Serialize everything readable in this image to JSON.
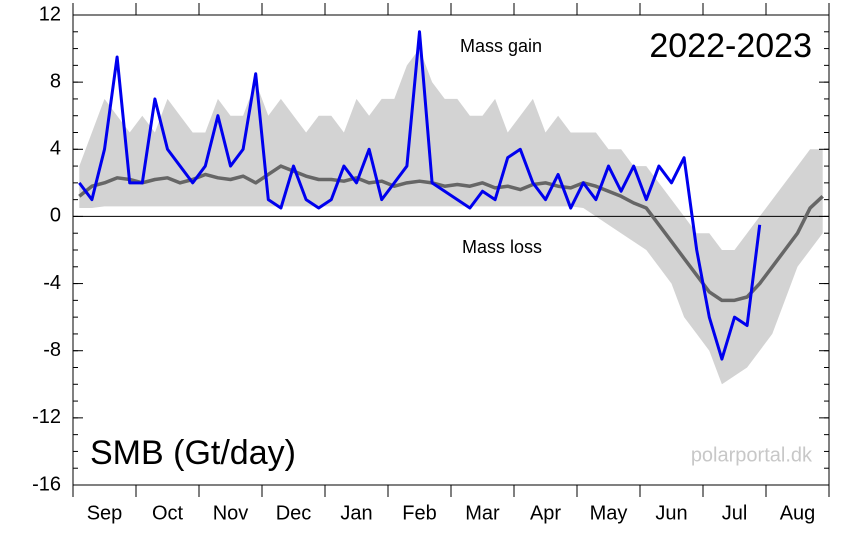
{
  "chart_data": {
    "type": "line",
    "title": "2022-2023",
    "y_label": "SMB (Gt/day)",
    "annotations": [
      "Mass gain",
      "Mass loss"
    ],
    "source": "polarportal.dk",
    "categories": [
      null,
      null,
      "Sep",
      null,
      null,
      null,
      null,
      "Oct",
      null,
      null,
      null,
      null,
      "Nov",
      null,
      null,
      null,
      null,
      "Dec",
      null,
      null,
      null,
      null,
      "Jan",
      null,
      null,
      null,
      null,
      "Feb",
      null,
      null,
      null,
      null,
      "Mar",
      null,
      null,
      null,
      null,
      "Apr",
      null,
      null,
      null,
      null,
      "May",
      null,
      null,
      null,
      null,
      "Jun",
      null,
      null,
      null,
      null,
      "Jul",
      null,
      null,
      null,
      null,
      "Aug",
      null,
      null
    ],
    "ylim": [
      -16,
      12
    ],
    "yticks": [
      -16,
      -12,
      -8,
      -4,
      0,
      4,
      8,
      12
    ],
    "series": [
      {
        "color": "#d3d3d3",
        "values": [
          3,
          5,
          7,
          6,
          5,
          6,
          5,
          7,
          6,
          5,
          5,
          7,
          6,
          6,
          8,
          6,
          7,
          6,
          5,
          6,
          6,
          5,
          7,
          6,
          7,
          7,
          9,
          10,
          8,
          7,
          7,
          6,
          6,
          7,
          5,
          6,
          7,
          5,
          6,
          5,
          5,
          5,
          4,
          4,
          3,
          3,
          2,
          1,
          0,
          -1,
          -1,
          -2,
          -2,
          -1,
          0,
          1,
          2,
          3,
          4,
          4
        ]
      },
      {
        "color": "#d3d3d3",
        "values": [
          0.5,
          0.5,
          0.6,
          0.6,
          0.6,
          0.6,
          0.6,
          0.6,
          0.6,
          0.6,
          0.6,
          0.6,
          0.6,
          0.6,
          0.6,
          0.6,
          0.6,
          0.6,
          0.6,
          0.6,
          0.6,
          0.6,
          0.6,
          0.6,
          0.6,
          0.6,
          0.6,
          0.6,
          0.6,
          0.6,
          0.6,
          0.6,
          0.6,
          0.6,
          0.6,
          0.6,
          0.6,
          0.6,
          0.6,
          0.6,
          0.5,
          0,
          -0.5,
          -1,
          -1.5,
          -2,
          -3,
          -4,
          -6,
          -7,
          -8,
          -10,
          -9.5,
          -9,
          -8,
          -7,
          -5,
          -3,
          -2,
          -1
        ]
      },
      {
        "color": "#666666",
        "values": [
          1.2,
          1.8,
          2,
          2.3,
          2.2,
          2,
          2.2,
          2.3,
          2,
          2.2,
          2.5,
          2.3,
          2.2,
          2.4,
          2,
          2.5,
          3,
          2.7,
          2.4,
          2.2,
          2.2,
          2.1,
          2.3,
          2,
          2.1,
          1.8,
          2,
          2.1,
          2,
          1.8,
          1.9,
          1.8,
          2,
          1.7,
          1.8,
          1.6,
          1.9,
          2,
          1.8,
          1.7,
          2,
          1.8,
          1.5,
          1.2,
          0.8,
          0.5,
          -0.5,
          -1.5,
          -2.5,
          -3.5,
          -4.5,
          -5,
          -5,
          -4.8,
          -4,
          -3,
          -2,
          -1,
          0.5,
          1.2
        ]
      },
      {
        "color": "#0000ee",
        "values": [
          2,
          1,
          4,
          9.5,
          2,
          2,
          7,
          4,
          3,
          2,
          3,
          6,
          3,
          4,
          8.5,
          1,
          0.5,
          3,
          1,
          0.5,
          1,
          3,
          2,
          4,
          1,
          2,
          3,
          11,
          2,
          1.5,
          1,
          0.5,
          1.5,
          1,
          3.5,
          4,
          2,
          1,
          2.5,
          0.5,
          2,
          1,
          3,
          1.5,
          3,
          1,
          3,
          2,
          3.5,
          -2,
          -6,
          -8.5,
          -6,
          -6.5,
          -0.5,
          null,
          null,
          null,
          null,
          null
        ]
      }
    ]
  }
}
